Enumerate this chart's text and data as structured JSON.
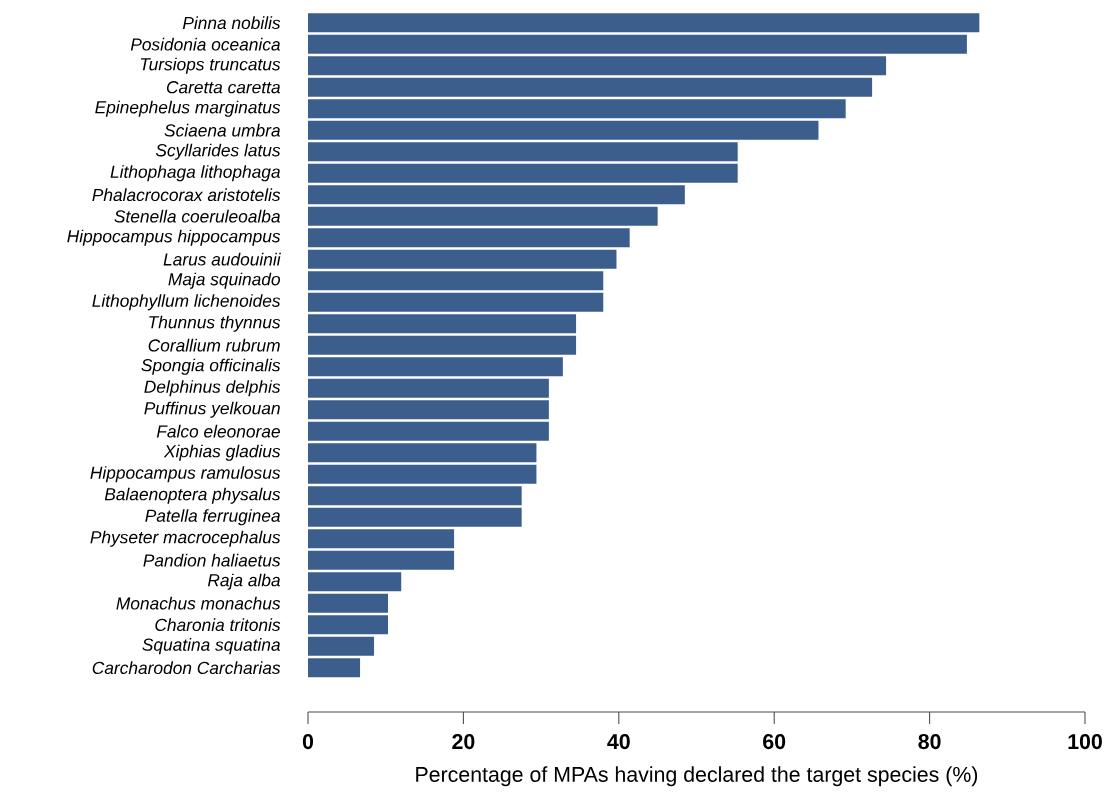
{
  "chart_data": {
    "type": "bar",
    "orientation": "horizontal",
    "xlabel": "Percentage of MPAs having declared the target species (%)",
    "categories": [
      "Pinna nobilis",
      "Posidonia oceanica",
      "Tursiops truncatus",
      "Caretta caretta",
      "Epinephelus marginatus",
      "Sciaena umbra",
      "Scyllarides latus",
      "Lithophaga lithophaga",
      "Phalacrocorax aristotelis",
      "Stenella coeruleoalba",
      "Hippocampus hippocampus",
      "Larus audouinii",
      "Maja squinado",
      "Lithophyllum lichenoides",
      "Thunnus thynnus",
      "Corallium rubrum",
      "Spongia officinalis",
      "Delphinus delphis",
      "Puffinus yelkouan",
      "Falco eleonorae",
      "Xiphias gladius",
      "Hippocampus ramulosus",
      "Balaenoptera physalus",
      "Patella ferruginea",
      "Physeter macrocephalus",
      "Pandion haliaetus",
      "Raja alba",
      "Monachus monachus",
      "Charonia tritonis",
      "Squatina squatina",
      "Carcharodon Carcharias"
    ],
    "values": [
      86.4,
      84.8,
      74.4,
      72.6,
      69.2,
      65.7,
      55.3,
      55.3,
      48.5,
      45.0,
      41.4,
      39.7,
      38.0,
      38.0,
      34.5,
      34.5,
      32.8,
      31.0,
      31.0,
      31.0,
      29.4,
      29.4,
      27.5,
      27.5,
      18.8,
      18.8,
      12.0,
      10.3,
      10.3,
      8.5,
      6.7
    ],
    "color": "#3b5e8c",
    "xlim": [
      0,
      100
    ],
    "xticks": [
      0,
      20,
      40,
      60,
      80,
      100
    ]
  }
}
